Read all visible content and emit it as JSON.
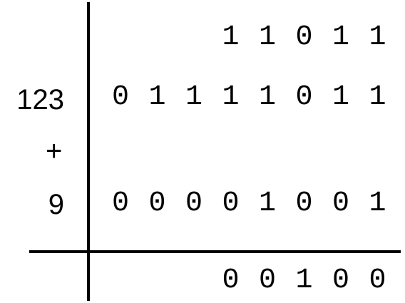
{
  "problem": {
    "carry_row": [
      "1",
      "1",
      "0",
      "1",
      "1"
    ],
    "operand_a": {
      "decimal": "123",
      "bits": [
        "0",
        "1",
        "1",
        "1",
        "1",
        "0",
        "1",
        "1"
      ]
    },
    "operator": "+",
    "operand_b": {
      "decimal": "9",
      "bits": [
        "0",
        "0",
        "0",
        "0",
        "1",
        "0",
        "0",
        "1"
      ]
    },
    "result_bits": [
      "0",
      "0",
      "1",
      "0",
      "0"
    ]
  }
}
